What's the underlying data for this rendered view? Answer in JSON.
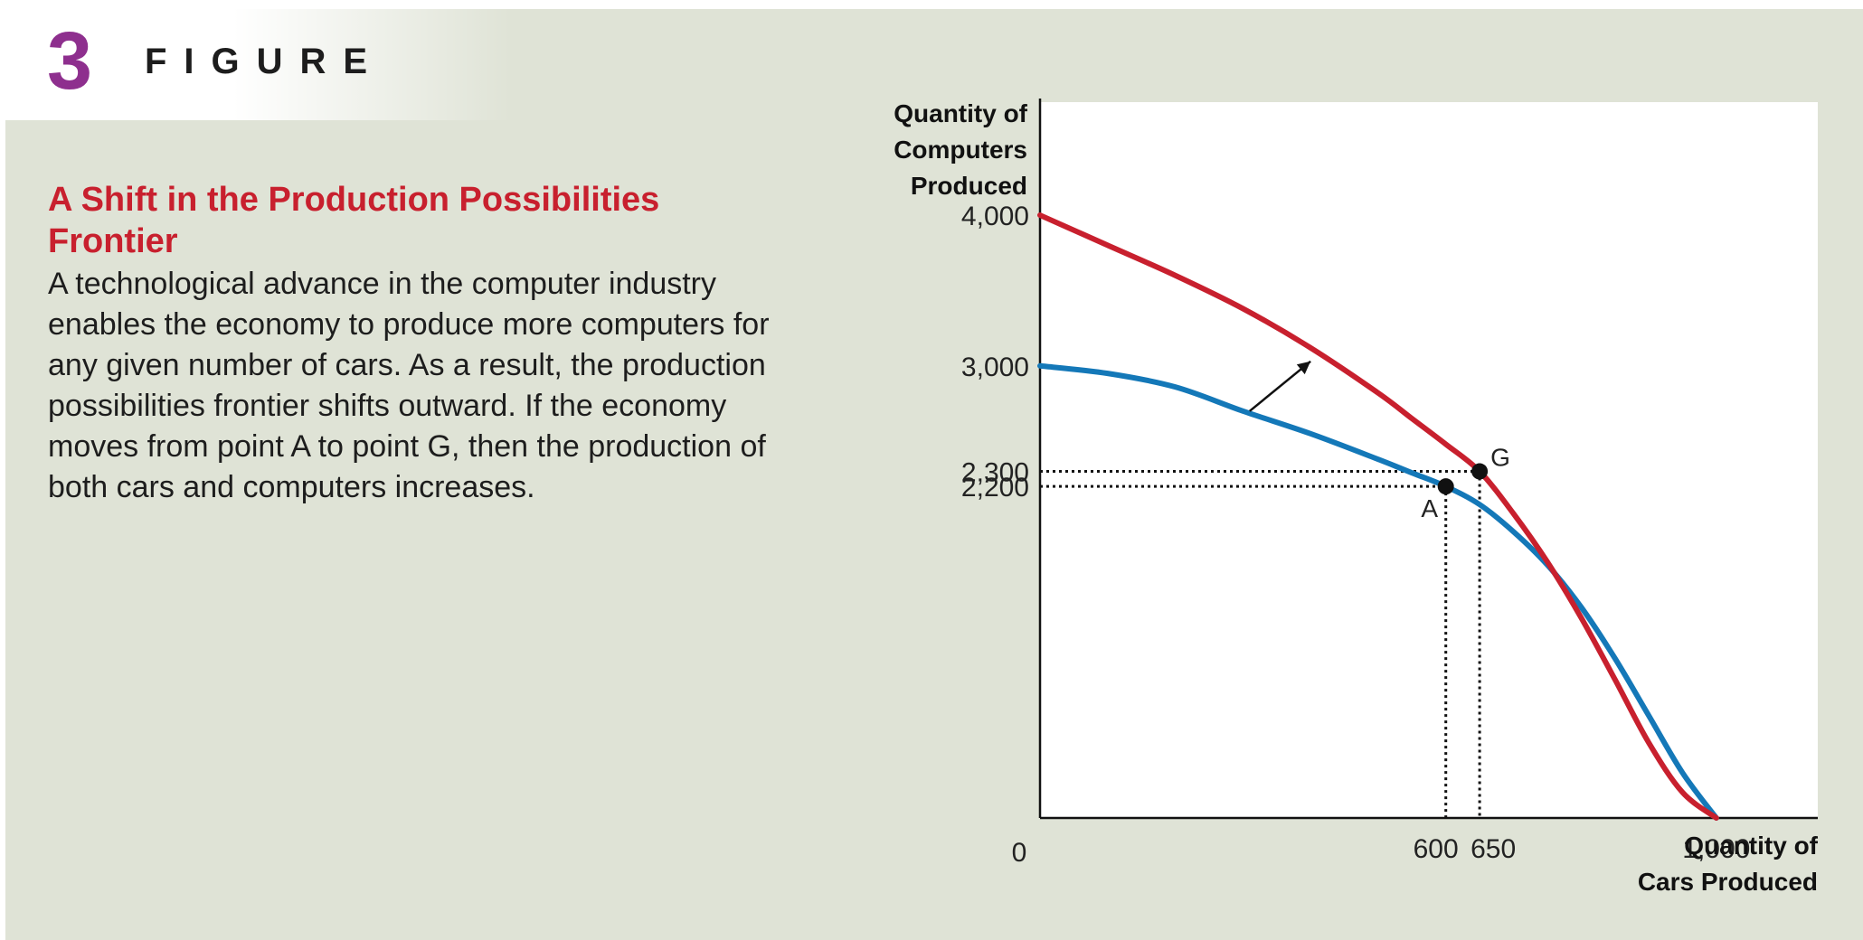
{
  "figure": {
    "number": "3",
    "word": "FIGURE",
    "caption_title": "A Shift in the Production Possibilities Frontier",
    "caption_body": "A technological advance in the computer industry enables the economy to produce more computers for any given number of cars. As a result, the production possibilities frontier shifts outward. If the economy moves from point A to point G, then the production of both cars and computers increases.",
    "colors": {
      "accent_title": "#c8202e",
      "figure_number": "#8e2f8e",
      "panel_background": "#dfe3d6"
    }
  },
  "chart_data": {
    "type": "line",
    "ylabel": [
      "Quantity of",
      "Computers",
      "Produced"
    ],
    "xlabel": [
      "Quantity of",
      "Cars Produced"
    ],
    "origin_label": "0",
    "xlim": [
      0,
      1150
    ],
    "ylim": [
      0,
      4750
    ],
    "x_ticks": [
      {
        "value": 600,
        "label": "600"
      },
      {
        "value": 650,
        "label": "650"
      },
      {
        "value": 1000,
        "label": "1,000"
      }
    ],
    "y_ticks": [
      {
        "value": 4000,
        "label": "4,000"
      },
      {
        "value": 3000,
        "label": "3,000"
      },
      {
        "value": 2300,
        "label": "2,300"
      },
      {
        "value": 2200,
        "label": "2,200"
      }
    ],
    "series": [
      {
        "key": "original_frontier",
        "color": "#1478b8",
        "points": [
          [
            0,
            3000
          ],
          [
            100,
            2950
          ],
          [
            200,
            2860
          ],
          [
            300,
            2700
          ],
          [
            400,
            2550
          ],
          [
            500,
            2380
          ],
          [
            550,
            2290
          ],
          [
            600,
            2200
          ],
          [
            650,
            2080
          ],
          [
            700,
            1900
          ],
          [
            750,
            1680
          ],
          [
            800,
            1400
          ],
          [
            850,
            1060
          ],
          [
            900,
            680
          ],
          [
            950,
            300
          ],
          [
            1000,
            0
          ]
        ]
      },
      {
        "key": "shifted_frontier",
        "color": "#c8202e",
        "points": [
          [
            0,
            4000
          ],
          [
            100,
            3800
          ],
          [
            200,
            3600
          ],
          [
            300,
            3380
          ],
          [
            400,
            3120
          ],
          [
            500,
            2820
          ],
          [
            550,
            2650
          ],
          [
            600,
            2480
          ],
          [
            650,
            2300
          ],
          [
            700,
            2020
          ],
          [
            750,
            1700
          ],
          [
            800,
            1330
          ],
          [
            850,
            920
          ],
          [
            900,
            500
          ],
          [
            950,
            170
          ],
          [
            1000,
            0
          ]
        ]
      }
    ],
    "points": [
      {
        "label": "A",
        "x": 600,
        "y": 2200
      },
      {
        "label": "G",
        "x": 650,
        "y": 2300
      }
    ],
    "shift_arrow": {
      "from": [
        310,
        2700
      ],
      "to": [
        400,
        3030
      ]
    }
  }
}
